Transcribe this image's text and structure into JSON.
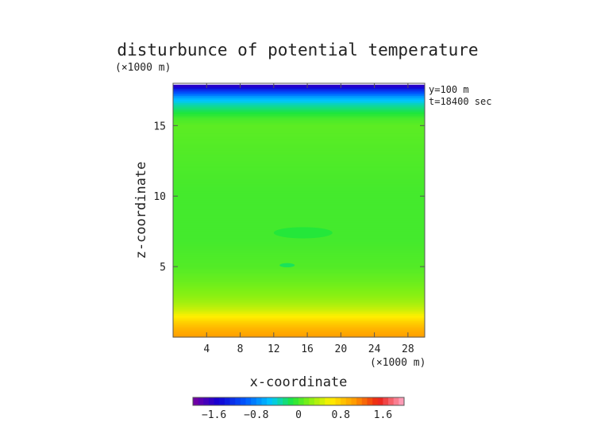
{
  "chart_data": {
    "type": "heatmap",
    "title": "disturbunce of potential temperature",
    "xlabel": "x-coordinate",
    "ylabel": "z-coordinate",
    "x_unit": "(×1000 m)",
    "y_unit": "(×1000 m)",
    "annotations": [
      "y=100 m",
      "t=18400 sec"
    ],
    "xlim": [
      0,
      30
    ],
    "ylim": [
      0,
      18
    ],
    "data_top": 17.9,
    "x_ticks": [
      4,
      8,
      12,
      16,
      20,
      24,
      28
    ],
    "y_ticks": [
      5,
      10,
      15
    ],
    "colorbar": {
      "range": [
        -2.0,
        2.0
      ],
      "ticks": [
        "−1.6",
        "−0.8",
        "0",
        "0.8",
        "1.6"
      ],
      "tick_values": [
        -1.6,
        -0.8,
        0,
        0.8,
        1.6
      ]
    },
    "z_profile": [
      {
        "z": 0.0,
        "value": 1.05
      },
      {
        "z": 0.5,
        "value": 0.95
      },
      {
        "z": 1.0,
        "value": 0.8
      },
      {
        "z": 1.5,
        "value": 0.6
      },
      {
        "z": 2.0,
        "value": 0.42
      },
      {
        "z": 2.5,
        "value": 0.3
      },
      {
        "z": 3.0,
        "value": 0.22
      },
      {
        "z": 4.0,
        "value": 0.12
      },
      {
        "z": 5.0,
        "value": 0.05
      },
      {
        "z": 7.0,
        "value": 0.0
      },
      {
        "z": 10.0,
        "value": 0.0
      },
      {
        "z": 12.0,
        "value": 0.03
      },
      {
        "z": 14.0,
        "value": 0.06
      },
      {
        "z": 15.0,
        "value": 0.08
      },
      {
        "z": 15.5,
        "value": 0.02
      },
      {
        "z": 16.0,
        "value": -0.15
      },
      {
        "z": 16.5,
        "value": -0.35
      },
      {
        "z": 17.0,
        "value": -0.65
      },
      {
        "z": 17.5,
        "value": -1.2
      },
      {
        "z": 17.9,
        "value": -1.7
      }
    ],
    "features": [
      {
        "x_center": 15.5,
        "z_center": 7.4,
        "x_halfwidth": 3.5,
        "z_halfwidth": 0.4,
        "value": -0.1
      },
      {
        "x_center": 13.6,
        "z_center": 5.1,
        "x_halfwidth": 0.9,
        "z_halfwidth": 0.15,
        "value": -0.18
      }
    ]
  }
}
